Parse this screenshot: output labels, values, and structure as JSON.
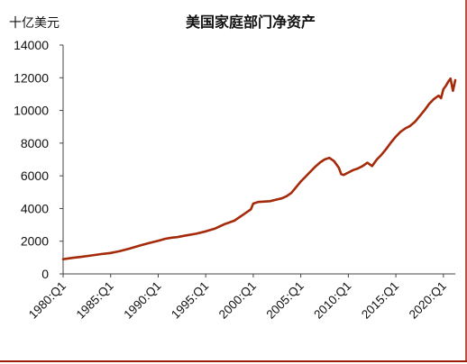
{
  "chart_data": {
    "type": "line",
    "title": "美国家庭部门净资产",
    "unit_label": "十亿美元",
    "xlabel": "",
    "ylabel": "",
    "grid": false,
    "legend": "none",
    "ylim": [
      0,
      14000
    ],
    "yticks": [
      "0",
      "2000",
      "4000",
      "6000",
      "8000",
      "10000",
      "12000",
      "14000"
    ],
    "xlim": [
      1980.0,
      2021.25
    ],
    "xticks": [
      {
        "label": "1980:Q1",
        "x": 1980.0
      },
      {
        "label": "1985:Q1",
        "x": 1985.0
      },
      {
        "label": "1990:Q1",
        "x": 1990.0
      },
      {
        "label": "1995:Q1",
        "x": 1995.0
      },
      {
        "label": "2000:Q1",
        "x": 2000.0
      },
      {
        "label": "2005:Q1",
        "x": 2005.0
      },
      {
        "label": "2010:Q1",
        "x": 2010.0
      },
      {
        "label": "2015:Q1",
        "x": 2015.0
      },
      {
        "label": "2020:Q1",
        "x": 2020.0
      }
    ],
    "series": [
      {
        "color": "#a52a0a",
        "points": [
          [
            1980.0,
            900
          ],
          [
            1981.0,
            980
          ],
          [
            1982.0,
            1050
          ],
          [
            1983.0,
            1130
          ],
          [
            1984.0,
            1210
          ],
          [
            1985.0,
            1280
          ],
          [
            1986.0,
            1400
          ],
          [
            1987.0,
            1550
          ],
          [
            1988.0,
            1720
          ],
          [
            1989.0,
            1880
          ],
          [
            1990.0,
            2030
          ],
          [
            1990.75,
            2150
          ],
          [
            1991.5,
            2220
          ],
          [
            1992.0,
            2250
          ],
          [
            1993.0,
            2360
          ],
          [
            1994.0,
            2460
          ],
          [
            1995.0,
            2600
          ],
          [
            1996.0,
            2780
          ],
          [
            1997.0,
            3050
          ],
          [
            1998.0,
            3250
          ],
          [
            1999.0,
            3650
          ],
          [
            1999.75,
            3950
          ],
          [
            2000.0,
            4300
          ],
          [
            2000.5,
            4400
          ],
          [
            2001.0,
            4420
          ],
          [
            2001.75,
            4450
          ],
          [
            2002.5,
            4550
          ],
          [
            2003.0,
            4620
          ],
          [
            2003.5,
            4750
          ],
          [
            2004.0,
            4950
          ],
          [
            2004.5,
            5300
          ],
          [
            2005.0,
            5650
          ],
          [
            2005.5,
            5950
          ],
          [
            2006.0,
            6250
          ],
          [
            2006.5,
            6550
          ],
          [
            2007.0,
            6800
          ],
          [
            2007.5,
            7000
          ],
          [
            2008.0,
            7100
          ],
          [
            2008.5,
            6900
          ],
          [
            2009.0,
            6500
          ],
          [
            2009.25,
            6100
          ],
          [
            2009.5,
            6050
          ],
          [
            2010.0,
            6200
          ],
          [
            2010.5,
            6350
          ],
          [
            2011.0,
            6450
          ],
          [
            2011.5,
            6600
          ],
          [
            2012.0,
            6800
          ],
          [
            2012.5,
            6600
          ],
          [
            2013.0,
            7000
          ],
          [
            2013.5,
            7300
          ],
          [
            2014.0,
            7650
          ],
          [
            2014.5,
            8050
          ],
          [
            2015.0,
            8400
          ],
          [
            2015.5,
            8700
          ],
          [
            2016.0,
            8900
          ],
          [
            2016.5,
            9050
          ],
          [
            2017.0,
            9300
          ],
          [
            2017.5,
            9650
          ],
          [
            2018.0,
            10000
          ],
          [
            2018.5,
            10400
          ],
          [
            2019.0,
            10700
          ],
          [
            2019.5,
            10900
          ],
          [
            2019.75,
            10750
          ],
          [
            2020.0,
            11300
          ],
          [
            2020.25,
            11500
          ],
          [
            2020.5,
            11750
          ],
          [
            2020.75,
            11950
          ],
          [
            2021.0,
            11200
          ],
          [
            2021.25,
            11850
          ]
        ]
      }
    ]
  }
}
